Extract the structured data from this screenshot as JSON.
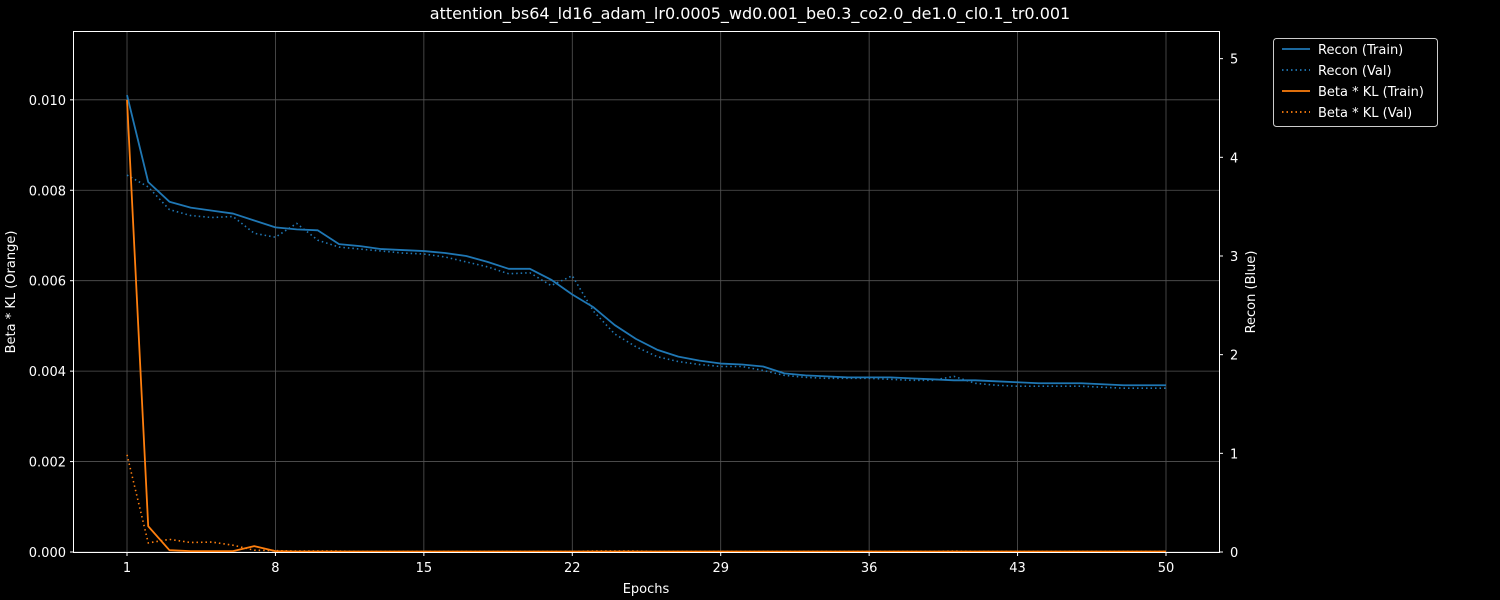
{
  "chart_data": {
    "type": "line",
    "title": "attention_bs64_ld16_adam_lr0.0005_wd0.001_be0.3_co2.0_de1.0_cl0.1_tr0.001",
    "xlabel": "Epochs",
    "ylabel_left": "Beta * KL (Orange)",
    "ylabel_right": "Recon (Blue)",
    "xlim": [
      -1.5,
      52.5
    ],
    "ylim_left": [
      0,
      0.0115
    ],
    "ylim_right": [
      0,
      5.27
    ],
    "x_ticks": [
      "1",
      "8",
      "15",
      "22",
      "29",
      "36",
      "43",
      "50"
    ],
    "y_left_ticks": [
      "0.000",
      "0.002",
      "0.004",
      "0.006",
      "0.008",
      "0.010"
    ],
    "y_right_ticks": [
      "0",
      "1",
      "2",
      "3",
      "4",
      "5"
    ],
    "grid": true,
    "legend_position": "outside top-right",
    "colors": {
      "blue": "#1f77b4",
      "orange": "#ff7f0e",
      "background": "#000000",
      "grid": "#555555"
    },
    "x": [
      1,
      2,
      3,
      4,
      5,
      6,
      7,
      8,
      9,
      10,
      11,
      12,
      13,
      14,
      15,
      16,
      17,
      18,
      19,
      20,
      21,
      22,
      23,
      24,
      25,
      26,
      27,
      28,
      29,
      30,
      31,
      32,
      33,
      34,
      35,
      36,
      37,
      38,
      39,
      40,
      41,
      42,
      43,
      44,
      45,
      46,
      47,
      48,
      49,
      50
    ],
    "series": [
      {
        "name": "Recon (Train)",
        "axis": "right",
        "style": "solid",
        "color": "#1f77b4",
        "values": [
          4.63,
          3.75,
          3.55,
          3.49,
          3.46,
          3.43,
          3.36,
          3.29,
          3.27,
          3.26,
          3.12,
          3.1,
          3.07,
          3.06,
          3.05,
          3.03,
          3.0,
          2.94,
          2.87,
          2.87,
          2.76,
          2.61,
          2.48,
          2.3,
          2.16,
          2.05,
          1.98,
          1.94,
          1.91,
          1.9,
          1.88,
          1.81,
          1.79,
          1.78,
          1.77,
          1.77,
          1.77,
          1.76,
          1.75,
          1.74,
          1.74,
          1.73,
          1.72,
          1.71,
          1.71,
          1.71,
          1.7,
          1.69,
          1.69,
          1.69
        ]
      },
      {
        "name": "Recon (Val)",
        "axis": "right",
        "style": "dotted",
        "color": "#1f77b4",
        "values": [
          3.82,
          3.7,
          3.47,
          3.41,
          3.39,
          3.4,
          3.23,
          3.19,
          3.33,
          3.16,
          3.09,
          3.07,
          3.05,
          3.03,
          3.02,
          2.99,
          2.94,
          2.89,
          2.82,
          2.83,
          2.7,
          2.8,
          2.44,
          2.21,
          2.08,
          1.98,
          1.93,
          1.9,
          1.88,
          1.88,
          1.84,
          1.79,
          1.77,
          1.76,
          1.76,
          1.76,
          1.75,
          1.74,
          1.74,
          1.78,
          1.71,
          1.69,
          1.68,
          1.68,
          1.68,
          1.68,
          1.67,
          1.66,
          1.66,
          1.66
        ]
      },
      {
        "name": "Beta * KL (Train)",
        "axis": "left",
        "style": "solid",
        "color": "#ff7f0e",
        "values": [
          0.01,
          0.00057,
          4e-05,
          2e-05,
          2e-05,
          2e-05,
          0.00013,
          2e-05,
          1e-05,
          1e-05,
          1e-05,
          1e-05,
          1e-05,
          1e-05,
          1e-05,
          1e-05,
          1e-05,
          1e-05,
          1e-05,
          1e-05,
          1e-05,
          1e-05,
          1e-05,
          1e-05,
          1e-05,
          1e-05,
          1e-05,
          1e-05,
          1e-05,
          1e-05,
          1e-05,
          1e-05,
          1e-05,
          1e-05,
          1e-05,
          1e-05,
          1e-05,
          1e-05,
          1e-05,
          1e-05,
          1e-05,
          1e-05,
          1e-05,
          1e-05,
          1e-05,
          1e-05,
          1e-05,
          1e-05,
          1e-05,
          1e-05
        ]
      },
      {
        "name": "Beta * KL (Val)",
        "axis": "left",
        "style": "dotted",
        "color": "#ff7f0e",
        "values": [
          0.00215,
          0.0002,
          0.00028,
          0.00021,
          0.00022,
          0.00015,
          4e-05,
          3e-05,
          2e-05,
          2e-05,
          2e-05,
          1e-05,
          1e-05,
          1e-05,
          1e-05,
          1e-05,
          1e-05,
          1e-05,
          1e-05,
          1e-05,
          1e-05,
          1e-05,
          2e-05,
          2e-05,
          2e-05,
          1e-05,
          1e-05,
          1e-05,
          1e-05,
          1e-05,
          1e-05,
          1e-05,
          1e-05,
          1e-05,
          1e-05,
          1e-05,
          1e-05,
          1e-05,
          1e-05,
          2e-05,
          1e-05,
          1e-05,
          1e-05,
          1e-05,
          1e-05,
          1e-05,
          1e-05,
          1e-05,
          1e-05,
          1e-05
        ]
      }
    ]
  }
}
